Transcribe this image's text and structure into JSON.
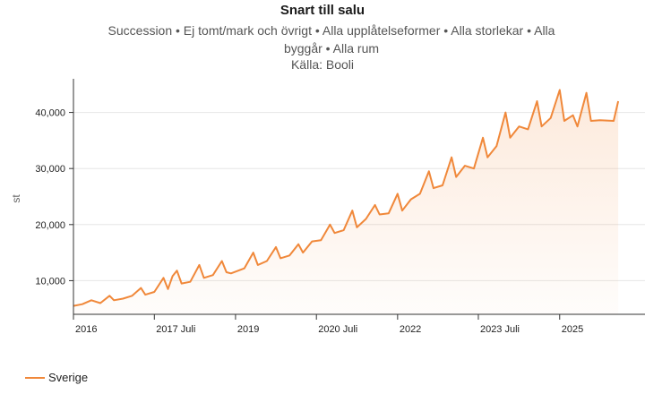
{
  "chart_data": {
    "type": "area",
    "title": "Snart till salu",
    "subtitle": "Succession • Ej tomt/mark och övrigt • Alla upplåtelseformer • Alla storlekar • Alla byggår • Alla rum",
    "source": "Källa: Booli",
    "ylabel": "st",
    "xlabel": "",
    "ylim": [
      4000,
      46000
    ],
    "xlim": [
      "2016-01-01",
      "2026-08-01"
    ],
    "y_ticks": [
      10000,
      20000,
      30000,
      40000
    ],
    "y_tick_labels": [
      "10,000",
      "20,000",
      "30,000",
      "40,000"
    ],
    "x_ticks": [
      {
        "date": "2016-01-01",
        "label": "2016"
      },
      {
        "date": "2017-07-01",
        "label": "2017 Juli"
      },
      {
        "date": "2019-01-01",
        "label": "2019"
      },
      {
        "date": "2020-07-01",
        "label": "2020 Juli"
      },
      {
        "date": "2022-01-01",
        "label": "2022"
      },
      {
        "date": "2023-07-01",
        "label": "2023 Juli"
      },
      {
        "date": "2025-01-01",
        "label": "2025"
      }
    ],
    "grid": true,
    "legend_position": "bottom-left",
    "series": [
      {
        "name": "Sverige",
        "color": "#f0883a",
        "points": [
          [
            "2016-01-01",
            5500
          ],
          [
            "2016-03-01",
            5800
          ],
          [
            "2016-05-01",
            6500
          ],
          [
            "2016-07-01",
            6000
          ],
          [
            "2016-09-01",
            7300
          ],
          [
            "2016-10-01",
            6500
          ],
          [
            "2016-12-01",
            6800
          ],
          [
            "2017-02-01",
            7300
          ],
          [
            "2017-04-01",
            8700
          ],
          [
            "2017-05-01",
            7500
          ],
          [
            "2017-07-01",
            8000
          ],
          [
            "2017-09-01",
            10500
          ],
          [
            "2017-10-01",
            8500
          ],
          [
            "2017-11-01",
            10800
          ],
          [
            "2017-12-01",
            11800
          ],
          [
            "2018-01-01",
            9500
          ],
          [
            "2018-03-01",
            9800
          ],
          [
            "2018-05-01",
            12800
          ],
          [
            "2018-06-01",
            10500
          ],
          [
            "2018-08-01",
            11000
          ],
          [
            "2018-10-01",
            13500
          ],
          [
            "2018-11-01",
            11500
          ],
          [
            "2018-12-01",
            11300
          ],
          [
            "2019-03-01",
            12200
          ],
          [
            "2019-05-01",
            15000
          ],
          [
            "2019-06-01",
            12800
          ],
          [
            "2019-08-01",
            13500
          ],
          [
            "2019-10-01",
            16000
          ],
          [
            "2019-11-01",
            14000
          ],
          [
            "2020-01-01",
            14500
          ],
          [
            "2020-03-01",
            16500
          ],
          [
            "2020-04-01",
            15000
          ],
          [
            "2020-06-01",
            17000
          ],
          [
            "2020-08-01",
            17200
          ],
          [
            "2020-10-01",
            20000
          ],
          [
            "2020-11-01",
            18500
          ],
          [
            "2021-01-01",
            19000
          ],
          [
            "2021-03-01",
            22500
          ],
          [
            "2021-04-01",
            19500
          ],
          [
            "2021-06-01",
            21000
          ],
          [
            "2021-08-01",
            23500
          ],
          [
            "2021-09-01",
            21800
          ],
          [
            "2021-11-01",
            22000
          ],
          [
            "2022-01-01",
            25500
          ],
          [
            "2022-02-01",
            22500
          ],
          [
            "2022-04-01",
            24500
          ],
          [
            "2022-06-01",
            25500
          ],
          [
            "2022-08-01",
            29500
          ],
          [
            "2022-09-01",
            26500
          ],
          [
            "2022-11-01",
            27000
          ],
          [
            "2023-01-01",
            32000
          ],
          [
            "2023-02-01",
            28500
          ],
          [
            "2023-04-01",
            30500
          ],
          [
            "2023-06-01",
            30000
          ],
          [
            "2023-08-01",
            35500
          ],
          [
            "2023-09-01",
            32000
          ],
          [
            "2023-11-01",
            34000
          ],
          [
            "2024-01-01",
            40000
          ],
          [
            "2024-02-01",
            35500
          ],
          [
            "2024-04-01",
            37500
          ],
          [
            "2024-06-01",
            37000
          ],
          [
            "2024-08-01",
            42000
          ],
          [
            "2024-09-01",
            37500
          ],
          [
            "2024-11-01",
            39000
          ],
          [
            "2025-01-01",
            44000
          ],
          [
            "2025-02-01",
            38500
          ],
          [
            "2025-04-01",
            39500
          ],
          [
            "2025-05-01",
            37500
          ],
          [
            "2025-07-01",
            43500
          ],
          [
            "2025-08-01",
            38500
          ],
          [
            "2025-10-01",
            38600
          ],
          [
            "2026-01-01",
            38500
          ],
          [
            "2026-02-01",
            42000
          ]
        ]
      }
    ]
  }
}
